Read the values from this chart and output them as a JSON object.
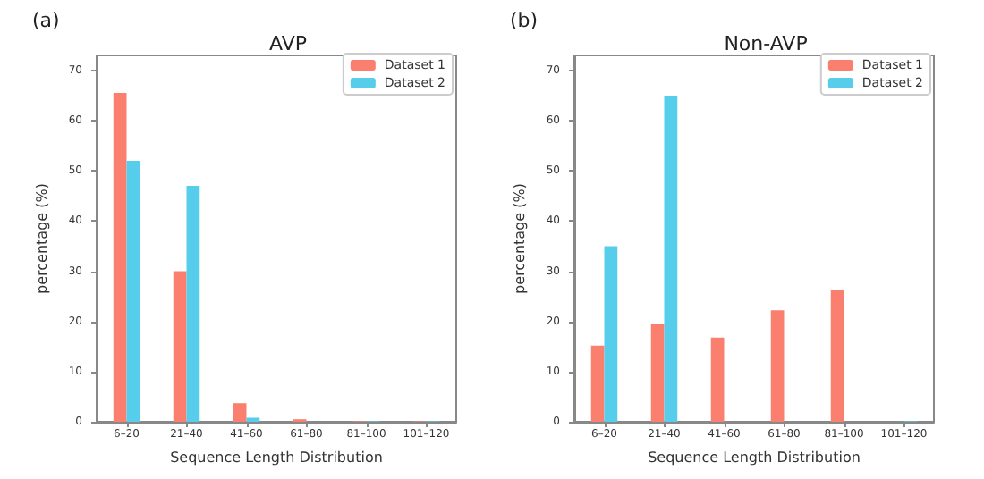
{
  "chart_data": [
    {
      "type": "bar",
      "title": "AVP",
      "xlabel": "Sequence Length Distribution",
      "ylabel": "percentage (%)",
      "annotations": [
        "(a)"
      ],
      "categories": [
        "6–20",
        "21–40",
        "41–60",
        "61–80",
        "81–100",
        "101–120"
      ],
      "series": [
        {
          "name": "Dataset 1",
          "color": "#fa7f6f",
          "values": [
            65.5,
            30,
            3.7,
            0.5,
            0.1,
            0.1
          ]
        },
        {
          "name": "Dataset 2",
          "color": "#56cdea",
          "values": [
            52,
            47,
            0.8,
            0,
            0.1,
            0.1
          ]
        }
      ],
      "ylim": [
        0,
        73
      ],
      "yticks": [
        0,
        10,
        20,
        30,
        40,
        50,
        60,
        70
      ],
      "legend": "top right",
      "grid": false
    },
    {
      "type": "bar",
      "title": "Non-AVP",
      "xlabel": "Sequence Length Distribution",
      "ylabel": "percentage (%)",
      "annotations": [
        "(b)"
      ],
      "categories": [
        "6–20",
        "21–40",
        "41–60",
        "61–80",
        "81–100",
        "101–120"
      ],
      "series": [
        {
          "name": "Dataset 1",
          "color": "#fa7f6f",
          "values": [
            15.2,
            19.6,
            16.8,
            22.2,
            26.3,
            0
          ]
        },
        {
          "name": "Dataset 2",
          "color": "#56cdea",
          "values": [
            35,
            65,
            0,
            0,
            0,
            0.1
          ]
        }
      ],
      "ylim": [
        0,
        73
      ],
      "yticks": [
        0,
        10,
        20,
        30,
        40,
        50,
        60,
        70
      ],
      "legend": "top right",
      "grid": false
    }
  ]
}
